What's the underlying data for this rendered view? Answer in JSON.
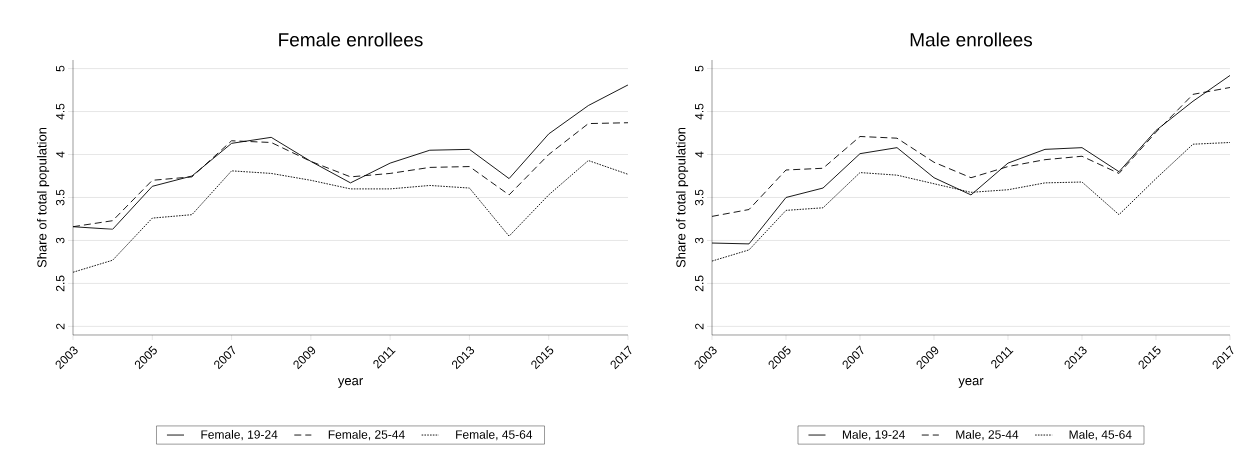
{
  "chart_data": [
    {
      "type": "line",
      "title": "Female enrollees",
      "xlabel": "year",
      "ylabel": "Share of total population",
      "x": [
        2003,
        2004,
        2005,
        2006,
        2007,
        2008,
        2009,
        2010,
        2011,
        2012,
        2013,
        2014,
        2015,
        2016,
        2017
      ],
      "series": [
        {
          "name": "Female, 19-24",
          "color": "#000000",
          "line_style": "solid",
          "values": [
            3.16,
            3.13,
            3.63,
            3.75,
            4.13,
            4.2,
            3.92,
            3.67,
            3.9,
            4.05,
            4.06,
            3.72,
            4.24,
            4.57,
            4.81
          ]
        },
        {
          "name": "Female, 25-44",
          "color": "#000000",
          "line_style": "dashed",
          "values": [
            3.16,
            3.23,
            3.7,
            3.74,
            4.16,
            4.14,
            3.92,
            3.74,
            3.78,
            3.85,
            3.86,
            3.53,
            4.0,
            4.36,
            4.37
          ]
        },
        {
          "name": "Female, 45-64",
          "color": "#000000",
          "line_style": "dotted",
          "values": [
            2.63,
            2.77,
            3.26,
            3.3,
            3.81,
            3.78,
            3.7,
            3.6,
            3.6,
            3.64,
            3.61,
            3.05,
            3.53,
            3.93,
            3.77
          ]
        }
      ],
      "xlim": [
        2003,
        2017
      ],
      "ylim": [
        1.9,
        5.1
      ],
      "xticks": [
        2003,
        2005,
        2007,
        2009,
        2011,
        2013,
        2015,
        2017
      ],
      "yticks": [
        2,
        2.5,
        3,
        3.5,
        4,
        4.5,
        5
      ],
      "grid": "y",
      "legend": "bottom",
      "marker": "none"
    },
    {
      "type": "line",
      "title": "Male enrollees",
      "xlabel": "year",
      "ylabel": "Share of total population",
      "x": [
        2003,
        2004,
        2005,
        2006,
        2007,
        2008,
        2009,
        2010,
        2011,
        2012,
        2013,
        2014,
        2015,
        2016,
        2017
      ],
      "series": [
        {
          "name": "Male, 19-24",
          "color": "#000000",
          "line_style": "solid",
          "values": [
            2.97,
            2.96,
            3.5,
            3.61,
            4.01,
            4.08,
            3.73,
            3.53,
            3.9,
            4.06,
            4.08,
            3.8,
            4.28,
            4.62,
            4.92
          ]
        },
        {
          "name": "Male, 25-44",
          "color": "#000000",
          "line_style": "dashed",
          "values": [
            3.28,
            3.36,
            3.82,
            3.84,
            4.21,
            4.19,
            3.91,
            3.73,
            3.86,
            3.94,
            3.98,
            3.78,
            4.26,
            4.7,
            4.78
          ]
        },
        {
          "name": "Male, 45-64",
          "color": "#000000",
          "line_style": "dotted",
          "values": [
            2.76,
            2.89,
            3.35,
            3.38,
            3.79,
            3.76,
            3.66,
            3.56,
            3.59,
            3.67,
            3.68,
            3.3,
            3.72,
            4.12,
            4.14
          ]
        }
      ],
      "xlim": [
        2003,
        2017
      ],
      "ylim": [
        1.9,
        5.1
      ],
      "xticks": [
        2003,
        2005,
        2007,
        2009,
        2011,
        2013,
        2015,
        2017
      ],
      "yticks": [
        2,
        2.5,
        3,
        3.5,
        4,
        4.5,
        5
      ],
      "grid": "y",
      "legend": "bottom",
      "marker": "none"
    }
  ]
}
